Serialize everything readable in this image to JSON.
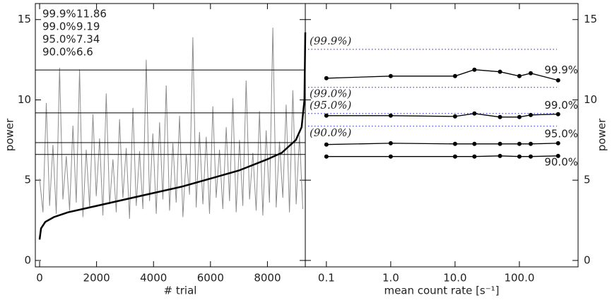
{
  "chart_data": [
    {
      "type": "line",
      "xlabel": "# trial",
      "ylabel": "power",
      "xlim": [
        -150,
        9330
      ],
      "ylim": [
        -0.4,
        16.0
      ],
      "xticks": [
        0,
        2000,
        4000,
        6000,
        8000
      ],
      "yticks": [
        0,
        5,
        10,
        15
      ],
      "series": [
        {
          "color": "#8c8c8c",
          "x": [
            0,
            117,
            234,
            351,
            468,
            585,
            702,
            819,
            936,
            1053,
            1170,
            1287,
            1404,
            1521,
            1638,
            1755,
            1872,
            1989,
            2106,
            2223,
            2340,
            2457,
            2574,
            2691,
            2808,
            2925,
            3042,
            3159,
            3276,
            3393,
            3510,
            3627,
            3744,
            3861,
            3978,
            4095,
            4212,
            4329,
            4446,
            4563,
            4680,
            4797,
            4914,
            5031,
            5148,
            5265,
            5382,
            5499,
            5616,
            5733,
            5850,
            5967,
            6084,
            6201,
            6318,
            6435,
            6552,
            6669,
            6786,
            6903,
            7020,
            7137,
            7254,
            7371,
            7488,
            7605,
            7722,
            7839,
            7956,
            8073,
            8190,
            8307,
            8424,
            8541,
            8658,
            8775,
            8892,
            9009,
            9126,
            9243
          ],
          "values": [
            5.1,
            3.0,
            9.8,
            3.4,
            7.2,
            2.9,
            12.0,
            3.8,
            6.5,
            3.1,
            8.4,
            3.6,
            11.9,
            2.7,
            6.9,
            3.3,
            9.1,
            4.0,
            7.6,
            2.8,
            10.4,
            3.5,
            6.3,
            3.0,
            8.8,
            3.9,
            7.0,
            2.6,
            9.5,
            3.4,
            6.8,
            3.2,
            12.5,
            3.7,
            7.9,
            2.9,
            8.6,
            3.8,
            10.9,
            3.1,
            7.3,
            3.6,
            9.0,
            2.7,
            6.6,
            4.1,
            13.9,
            3.3,
            8.0,
            3.5,
            7.7,
            2.9,
            9.6,
            3.9,
            6.9,
            3.2,
            8.3,
            3.7,
            10.1,
            3.0,
            7.5,
            3.4,
            11.2,
            3.8,
            6.7,
            3.1,
            9.3,
            2.8,
            8.1,
            3.6,
            14.5,
            3.3,
            7.4,
            3.9,
            9.7,
            3.0,
            10.6,
            3.5,
            7.8,
            3.2
          ]
        },
        {
          "color": "#000000",
          "x": [
            0,
            50,
            200,
            500,
            1000,
            2000,
            3000,
            4000,
            5000,
            6000,
            7000,
            8000,
            8500,
            9000,
            9200,
            9300,
            9330
          ],
          "values": [
            1.3,
            2.0,
            2.4,
            2.7,
            3.0,
            3.4,
            3.8,
            4.2,
            4.6,
            5.1,
            5.6,
            6.3,
            6.7,
            7.5,
            8.3,
            10.0,
            14.2
          ]
        }
      ],
      "thresholds": [
        {
          "label": "99.9%",
          "value": 11.86
        },
        {
          "label": "99.0%",
          "value": 9.19
        },
        {
          "label": "95.0%",
          "value": 7.34
        },
        {
          "label": "90.0%",
          "value": 6.6
        }
      ]
    },
    {
      "type": "line",
      "xlabel": "mean count rate [s⁻¹]",
      "ylabel": "power",
      "log_x": true,
      "xlim": [
        0.047,
        817
      ],
      "ylim": [
        -0.4,
        16.0
      ],
      "xticks": [
        0.1,
        {
          "value": 1,
          "label": "1.0"
        },
        {
          "value": 10,
          "label": "10.0"
        },
        {
          "value": 100,
          "label": "100.0"
        }
      ],
      "yticks": [
        0,
        5,
        10,
        15
      ],
      "x": [
        0.1,
        1,
        10,
        20,
        50,
        100,
        150,
        400
      ],
      "series": [
        {
          "name": "99.9%",
          "color": "#000000",
          "values": [
            11.35,
            11.48,
            11.48,
            11.88,
            11.75,
            11.48,
            11.66,
            11.22
          ]
        },
        {
          "name": "99.0%",
          "color": "#000000",
          "values": [
            9.02,
            9.02,
            8.97,
            9.15,
            8.93,
            8.93,
            9.06,
            9.11
          ]
        },
        {
          "name": "95.0%",
          "color": "#000000",
          "values": [
            7.22,
            7.3,
            7.26,
            7.26,
            7.26,
            7.26,
            7.26,
            7.3
          ]
        },
        {
          "name": "90.0%",
          "color": "#000000",
          "values": [
            6.47,
            6.47,
            6.47,
            6.47,
            6.51,
            6.47,
            6.47,
            6.51
          ]
        }
      ],
      "reference_lines": {
        "color": "#2020d0",
        "lines": [
          {
            "label": "(99.9%)",
            "value": 13.15
          },
          {
            "label": "(99.0%)",
            "value": 10.78
          },
          {
            "label": "(95.0%)",
            "value": 9.15
          },
          {
            "label": "(90.0%)",
            "value": 8.36
          }
        ]
      }
    }
  ]
}
